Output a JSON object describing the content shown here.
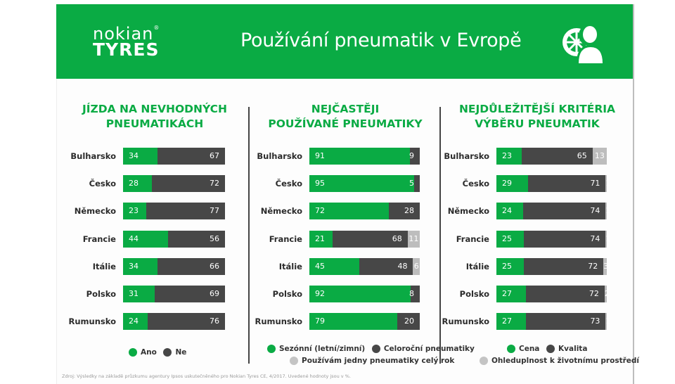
{
  "header": {
    "logo_line1": "nokian",
    "logo_reg": "®",
    "logo_line2": "TYRES",
    "title": "Používání pneumatik v Evropě",
    "icon": "tyre-customer-icon"
  },
  "colors": {
    "brand_green": "#0aab44",
    "dark_gray": "#474747",
    "light_gray": "#bdbdbd"
  },
  "chart_data": [
    {
      "type": "bar",
      "orientation": "horizontal-stacked",
      "title_lines": [
        "JÍZDA NA NEVHODNÝCH",
        "PNEUMATIKÁCH"
      ],
      "categories": [
        "Bulharsko",
        "Česko",
        "Německo",
        "Francie",
        "Itálie",
        "Polsko",
        "Rumunsko"
      ],
      "series": [
        {
          "name": "Ano",
          "color": "#0aab44",
          "values": [
            34,
            28,
            23,
            44,
            34,
            31,
            24
          ]
        },
        {
          "name": "Ne",
          "color": "#474747",
          "values": [
            67,
            72,
            77,
            56,
            66,
            69,
            76
          ]
        }
      ],
      "unit": "%",
      "legend": "bottom-center"
    },
    {
      "type": "bar",
      "orientation": "horizontal-stacked",
      "title_lines": [
        "NEJČASTĚJI",
        "POUŽÍVANÉ PNEUMATIKY"
      ],
      "categories": [
        "Bulharsko",
        "Česko",
        "Německo",
        "Francie",
        "Itálie",
        "Polsko",
        "Rumunsko"
      ],
      "series": [
        {
          "name": "Sezónní (letní/zimní)",
          "color": "#0aab44",
          "values": [
            91,
            95,
            72,
            21,
            45,
            92,
            79
          ]
        },
        {
          "name": "Celoroční pneumatiky",
          "color": "#474747",
          "values": [
            9,
            5,
            28,
            68,
            48,
            8,
            20
          ]
        },
        {
          "name": "Používám jedny pneumatiky celý rok",
          "color": "#bdbdbd",
          "values": [
            null,
            null,
            null,
            11,
            6,
            null,
            null
          ]
        }
      ],
      "unit": "%",
      "legend": "bottom-center"
    },
    {
      "type": "bar",
      "orientation": "horizontal-stacked",
      "title_lines": [
        "NEJDŮLEŽITĚJŠÍ KRITÉRIA",
        "VÝBĚRU PNEUMATIK"
      ],
      "categories": [
        "Bulharsko",
        "Česko",
        "Německo",
        "Francie",
        "Itálie",
        "Polsko",
        "Rumunsko"
      ],
      "series": [
        {
          "name": "Cena",
          "color": "#0aab44",
          "values": [
            23,
            29,
            24,
            25,
            25,
            27,
            27
          ]
        },
        {
          "name": "Kvalita",
          "color": "#474747",
          "values": [
            65,
            71,
            74,
            74,
            72,
            72,
            73
          ]
        },
        {
          "name": "Ohleduplnost k životnímu prostředí",
          "color": "#bdbdbd",
          "values": [
            13,
            1,
            1,
            1,
            3,
            2,
            1
          ]
        }
      ],
      "unit": "%",
      "legend": "bottom-center"
    }
  ],
  "footnote": "Zdroj: Výsledky na základě průzkumu agentury Ipsos uskutečněného pro Nokian Tyres CE, 4/2017. Uvedené hodnoty jsou v %."
}
